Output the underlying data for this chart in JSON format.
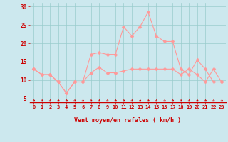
{
  "xlabel": "Vent moyen/en rafales ( km/h )",
  "background_color": "#cce8ee",
  "grid_color": "#99cccc",
  "line_color_mean": "#ff9999",
  "line_color_gust": "#ff9999",
  "arrow_color": "#cc0000",
  "x": [
    0,
    1,
    2,
    3,
    4,
    5,
    6,
    7,
    8,
    9,
    10,
    11,
    12,
    13,
    14,
    15,
    16,
    17,
    18,
    19,
    20,
    21,
    22,
    23
  ],
  "y_mean": [
    13,
    11.5,
    11.5,
    9.5,
    6.5,
    9.5,
    9.5,
    12,
    13.5,
    12,
    12,
    12.5,
    13,
    13,
    13,
    13,
    13,
    13,
    11.5,
    13,
    11.5,
    9.5,
    13,
    9.5
  ],
  "y_gust": [
    13,
    11.5,
    11.5,
    9.5,
    6.5,
    9.5,
    9.5,
    17,
    17.5,
    17,
    17,
    24.5,
    22,
    24.5,
    28.5,
    22,
    20.5,
    20.5,
    13,
    11.5,
    15.5,
    13,
    9.5,
    9.5
  ],
  "ylim": [
    4,
    31
  ],
  "xlim": [
    -0.5,
    23.5
  ],
  "yticks": [
    5,
    10,
    15,
    20,
    25,
    30
  ],
  "xticks": [
    0,
    1,
    2,
    3,
    4,
    5,
    6,
    7,
    8,
    9,
    10,
    11,
    12,
    13,
    14,
    15,
    16,
    17,
    18,
    19,
    20,
    21,
    22,
    23
  ],
  "markersize": 2.5,
  "linewidth": 0.8
}
